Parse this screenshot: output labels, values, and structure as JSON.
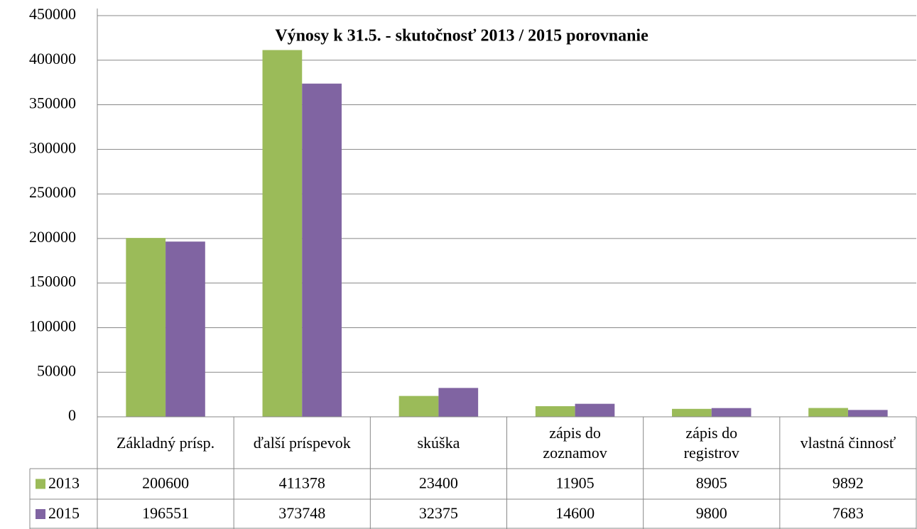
{
  "chart_data": {
    "type": "bar",
    "title": "Výnosy k 31.5. - skutočnosť 2013 / 2015 porovnanie",
    "categories": [
      "Základný prísp.",
      "ďalší príspevok",
      "skúška",
      "zápis do\nzoznamov",
      "zápis do\nregistrov",
      "vlastná činnosť"
    ],
    "series": [
      {
        "name": "2013",
        "color": "#9bbb59",
        "values": [
          200600,
          411378,
          23400,
          11905,
          8905,
          9892
        ]
      },
      {
        "name": "2015",
        "color": "#8064a2",
        "values": [
          196551,
          373748,
          32375,
          14600,
          9800,
          7683
        ]
      }
    ],
    "ylim": [
      0,
      450000
    ],
    "yticks": [
      0,
      50000,
      100000,
      150000,
      200000,
      250000,
      300000,
      350000,
      400000,
      450000
    ],
    "grid": true,
    "data_table": true
  }
}
